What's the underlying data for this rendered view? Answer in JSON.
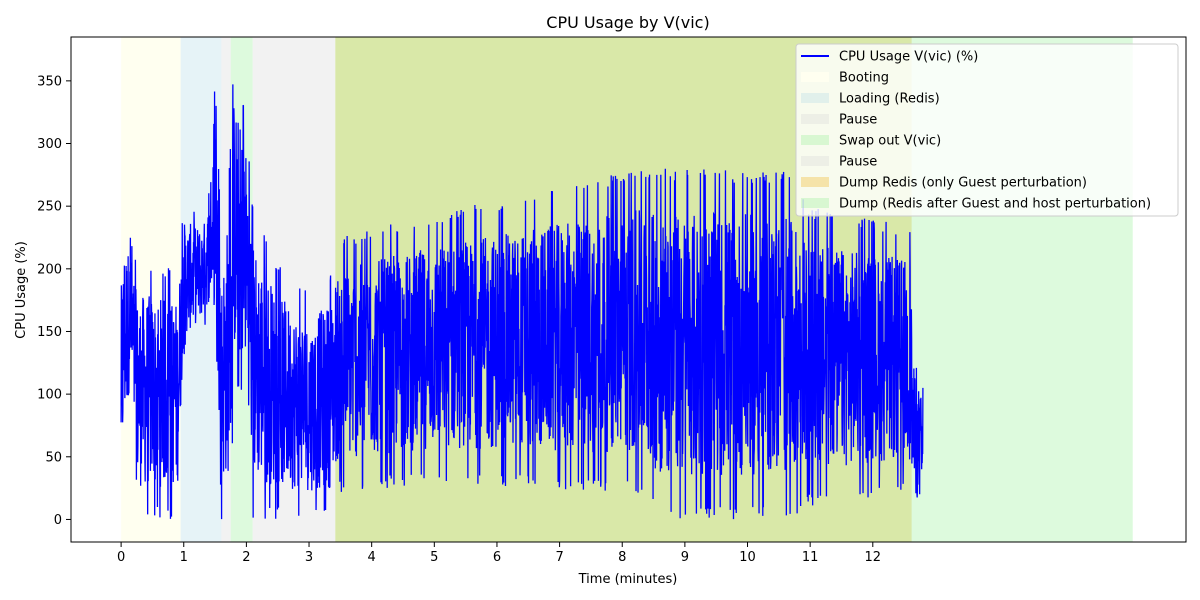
{
  "chart_data": {
    "type": "line",
    "title": "CPU Usage by V(vic)",
    "xlabel": "Time (minutes)",
    "ylabel": "CPU Usage (%)",
    "xlim": [
      -0.8,
      17.0
    ],
    "ylim": [
      -18,
      385
    ],
    "xticks": [
      0,
      1,
      2,
      3,
      4,
      5,
      6,
      7,
      8,
      9,
      10,
      11,
      12
    ],
    "yticks": [
      0,
      50,
      100,
      150,
      200,
      250,
      300,
      350
    ],
    "grid": false,
    "legend_position": "top-right",
    "line_color": "#0000ff",
    "series": [
      {
        "name": "CPU Usage V(vic) (%)",
        "x_range": [
          0,
          12.8
        ],
        "envelope": [
          {
            "x": 0.0,
            "min": 5,
            "max": 210
          },
          {
            "x": 0.05,
            "min": 40,
            "max": 249
          },
          {
            "x": 0.15,
            "min": 95,
            "max": 230
          },
          {
            "x": 0.25,
            "min": 0,
            "max": 205
          },
          {
            "x": 0.5,
            "min": 0,
            "max": 205
          },
          {
            "x": 0.9,
            "min": 0,
            "max": 200
          },
          {
            "x": 1.0,
            "min": 130,
            "max": 253
          },
          {
            "x": 1.3,
            "min": 150,
            "max": 245
          },
          {
            "x": 1.45,
            "min": 165,
            "max": 275
          },
          {
            "x": 1.5,
            "min": 170,
            "max": 358
          },
          {
            "x": 1.6,
            "min": 0,
            "max": 220
          },
          {
            "x": 1.75,
            "min": 0,
            "max": 300
          },
          {
            "x": 1.8,
            "min": 100,
            "max": 370
          },
          {
            "x": 2.0,
            "min": 95,
            "max": 325
          },
          {
            "x": 2.1,
            "min": 0,
            "max": 255
          },
          {
            "x": 2.5,
            "min": 0,
            "max": 205
          },
          {
            "x": 3.0,
            "min": 0,
            "max": 180
          },
          {
            "x": 3.35,
            "min": 0,
            "max": 200
          },
          {
            "x": 3.45,
            "min": 20,
            "max": 225
          },
          {
            "x": 5.0,
            "min": 30,
            "max": 245
          },
          {
            "x": 8.3,
            "min": 20,
            "max": 280
          },
          {
            "x": 8.6,
            "min": 0,
            "max": 280
          },
          {
            "x": 10.6,
            "min": 0,
            "max": 278
          },
          {
            "x": 11.0,
            "min": 10,
            "max": 250
          },
          {
            "x": 12.6,
            "min": 20,
            "max": 235
          },
          {
            "x": 12.65,
            "min": 0,
            "max": 140
          },
          {
            "x": 12.8,
            "min": 0,
            "max": 107
          }
        ],
        "end_value": 105
      }
    ],
    "regions": [
      {
        "name": "Booting",
        "start": 0.0,
        "end": 0.95,
        "color": "#fffff0",
        "opacity": 1.0
      },
      {
        "name": "Loading (Redis)",
        "start": 0.95,
        "end": 1.6,
        "color": "#add8e6",
        "opacity": 0.3
      },
      {
        "name": "Pause",
        "start": 1.6,
        "end": 1.75,
        "color": "#d3d3d3",
        "opacity": 0.3
      },
      {
        "name": "Swap out V(vic)",
        "start": 1.75,
        "end": 2.1,
        "color": "#90ee90",
        "opacity": 0.3
      },
      {
        "name": "Pause",
        "start": 2.1,
        "end": 3.42,
        "color": "#d3d3d3",
        "opacity": 0.3
      },
      {
        "name": "Dump Redis (only Guest perturbation)",
        "start": 3.42,
        "end": 12.62,
        "color": "#f0c040",
        "opacity": 0.4
      },
      {
        "name": "Dump (Redis after Guest and host perturbation)",
        "start": 3.42,
        "end": 16.15,
        "color": "#90ee90",
        "opacity": 0.3
      }
    ]
  }
}
